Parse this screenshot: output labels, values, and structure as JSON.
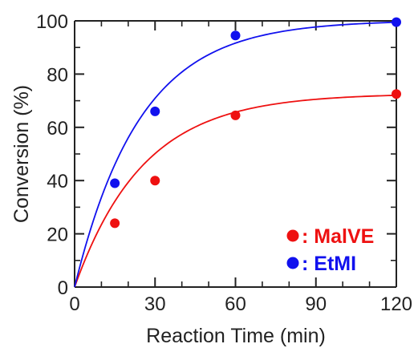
{
  "chart_data": {
    "type": "scatter",
    "xlabel": "Reaction Time (min)",
    "ylabel": "Conversion (%)",
    "xlim": [
      0,
      120
    ],
    "ylim": [
      0,
      100
    ],
    "x_ticks": [
      0,
      30,
      60,
      90,
      120
    ],
    "x_tick_labels": [
      "0",
      "30",
      "60",
      "90",
      "120"
    ],
    "y_ticks": [
      0,
      20,
      40,
      60,
      80,
      100
    ],
    "y_tick_labels": [
      "0",
      "20",
      "40",
      "60",
      "80",
      "100"
    ],
    "grid": false,
    "legend_position": "bottom-right",
    "series": [
      {
        "name": "MalVE",
        "legend_text": ": MalVE",
        "color": "#ee1111",
        "marker": "circle",
        "x": [
          15,
          30,
          60,
          120
        ],
        "y": [
          24,
          40,
          64.5,
          72.5
        ],
        "fit_curve": {
          "form": "first-order",
          "ymax": 72.7,
          "k": 0.039
        }
      },
      {
        "name": "EtMI",
        "legend_text": ": EtMI",
        "color": "#1111ee",
        "marker": "circle",
        "x": [
          15,
          30,
          60,
          120
        ],
        "y": [
          39,
          66,
          94.5,
          99.5
        ],
        "fit_curve": {
          "form": "first-order",
          "ymax": 100.2,
          "k": 0.041
        }
      }
    ]
  }
}
